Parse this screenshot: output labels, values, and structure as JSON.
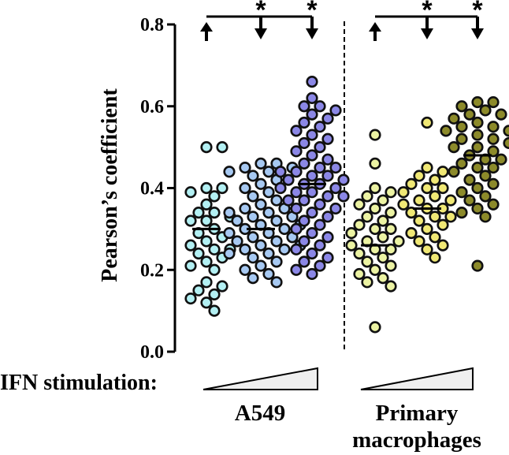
{
  "chart_data": {
    "type": "scatter",
    "ylabel": "Pearson’s coefficient",
    "ylim": [
      0,
      0.8
    ],
    "yticks": [
      "0.0",
      "0.2",
      "0.4",
      "0.6",
      "0.8"
    ],
    "stimulation_label": "IFN stimulation:",
    "groups": [
      {
        "label": "A549",
        "series": [
          {
            "color": "#b3f0f3",
            "mean": 0.3,
            "values": [
              0.5,
              0.5,
              0.4,
              0.4,
              0.39,
              0.38,
              0.36,
              0.34,
              0.34,
              0.33,
              0.32,
              0.32,
              0.3,
              0.29,
              0.28,
              0.27,
              0.26,
              0.25,
              0.25,
              0.24,
              0.23,
              0.22,
              0.21,
              0.2,
              0.17,
              0.16,
              0.15,
              0.14,
              0.13,
              0.12,
              0.1
            ]
          },
          {
            "color": "#a7c9f2",
            "mean": 0.3,
            "values": [
              0.46,
              0.46,
              0.45,
              0.45,
              0.44,
              0.44,
              0.43,
              0.42,
              0.41,
              0.4,
              0.39,
              0.38,
              0.37,
              0.36,
              0.35,
              0.35,
              0.34,
              0.34,
              0.33,
              0.33,
              0.32,
              0.32,
              0.31,
              0.31,
              0.3,
              0.3,
              0.29,
              0.29,
              0.28,
              0.28,
              0.27,
              0.27,
              0.26,
              0.26,
              0.25,
              0.25,
              0.24,
              0.24,
              0.23,
              0.22,
              0.21,
              0.2,
              0.19,
              0.18,
              0.17
            ]
          },
          {
            "color": "#8b87e6",
            "mean": 0.41,
            "values": [
              0.66,
              0.62,
              0.6,
              0.6,
              0.59,
              0.58,
              0.57,
              0.56,
              0.55,
              0.54,
              0.53,
              0.52,
              0.51,
              0.5,
              0.49,
              0.48,
              0.47,
              0.46,
              0.45,
              0.45,
              0.44,
              0.44,
              0.43,
              0.43,
              0.42,
              0.42,
              0.41,
              0.41,
              0.4,
              0.4,
              0.39,
              0.39,
              0.38,
              0.38,
              0.37,
              0.37,
              0.36,
              0.35,
              0.35,
              0.34,
              0.33,
              0.32,
              0.31,
              0.3,
              0.29,
              0.28,
              0.27,
              0.26,
              0.25,
              0.24,
              0.23,
              0.22,
              0.21,
              0.2,
              0.19
            ]
          }
        ]
      },
      {
        "label": "Primary macrophages",
        "series": [
          {
            "color": "#ecf3a3",
            "mean": 0.26,
            "values": [
              0.53,
              0.46,
              0.4,
              0.39,
              0.38,
              0.37,
              0.36,
              0.35,
              0.34,
              0.33,
              0.32,
              0.31,
              0.3,
              0.3,
              0.29,
              0.28,
              0.27,
              0.27,
              0.26,
              0.25,
              0.25,
              0.24,
              0.23,
              0.22,
              0.21,
              0.2,
              0.19,
              0.18,
              0.17,
              0.16,
              0.06
            ]
          },
          {
            "color": "#f0e875",
            "mean": 0.35,
            "values": [
              0.56,
              0.45,
              0.44,
              0.43,
              0.42,
              0.41,
              0.4,
              0.4,
              0.39,
              0.38,
              0.37,
              0.37,
              0.36,
              0.35,
              0.35,
              0.34,
              0.33,
              0.33,
              0.32,
              0.31,
              0.3,
              0.29,
              0.28,
              0.27,
              0.26,
              0.25,
              0.23
            ]
          },
          {
            "color": "#8c8a2a",
            "mean": 0.48,
            "values": [
              0.61,
              0.61,
              0.6,
              0.59,
              0.58,
              0.58,
              0.57,
              0.56,
              0.55,
              0.55,
              0.54,
              0.54,
              0.53,
              0.52,
              0.52,
              0.51,
              0.5,
              0.5,
              0.49,
              0.49,
              0.48,
              0.47,
              0.47,
              0.46,
              0.45,
              0.45,
              0.44,
              0.43,
              0.42,
              0.41,
              0.4,
              0.39,
              0.38,
              0.37,
              0.36,
              0.35,
              0.34,
              0.33,
              0.21
            ]
          }
        ]
      }
    ],
    "comparisons": [
      {
        "group": 0,
        "arrows": [
          "up",
          "down",
          "down"
        ],
        "significant": [
          false,
          true,
          true
        ],
        "marker": "*"
      },
      {
        "group": 1,
        "arrows": [
          "up",
          "down",
          "down"
        ],
        "significant": [
          false,
          true,
          true
        ],
        "marker": "*"
      }
    ]
  }
}
